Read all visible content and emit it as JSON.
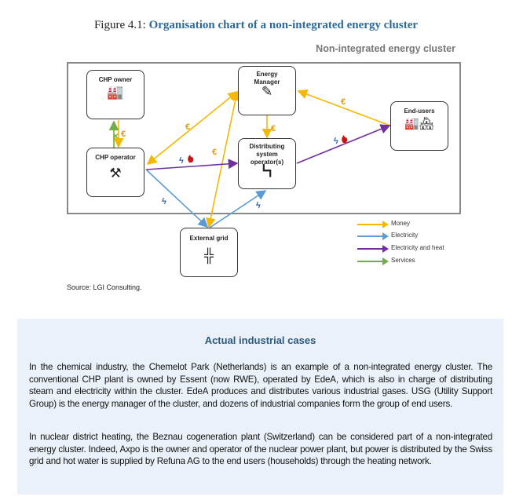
{
  "figure": {
    "label": "Figure 4.1:",
    "title": "Organisation chart of a non-integrated energy cluster"
  },
  "cluster_label": "Non-integrated energy cluster",
  "nodes": {
    "chp_owner": {
      "label": "CHP owner",
      "icon": "power-plant-icon"
    },
    "chp_operator": {
      "label": "CHP operator",
      "icon": "tools-icon"
    },
    "energy_manager": {
      "label": "Energy Manager",
      "icon": "tablet-pen-icon"
    },
    "dso": {
      "label": "Distributing system operator(s)",
      "icon": "pipes-icon"
    },
    "end_users": {
      "label": "End-users",
      "icon": "factory-houses-icon"
    },
    "external_grid": {
      "label": "External grid",
      "icon": "pylon-icon"
    }
  },
  "flow_labels": {
    "euro": "€",
    "bolt": "ϟ",
    "services": "✕",
    "heat": "🔥"
  },
  "legend": [
    {
      "label": "Money",
      "color": "#f5b800"
    },
    {
      "label": "Electricity",
      "color": "#5b9bd5"
    },
    {
      "label": "Electricity and heat",
      "color": "#7030a0"
    },
    {
      "label": "Services",
      "color": "#70ad47"
    }
  ],
  "source": "Source: LGI Consulting.",
  "cases": {
    "title": "Actual industrial cases",
    "paragraphs": [
      "In the chemical industry, the Chemelot Park (Netherlands) is an example of a non-integrated energy cluster. The conventional CHP plant is owned by Essent (now RWE), operated by EdeA, which is also in charge of distributing steam and electricity within the cluster. EdeA produces and distributes various industrial gases. USG (Utility Support Group) is the energy manager of the cluster, and dozens of industrial companies form the group of end users.",
      "In nuclear district heating, the Beznau cogeneration plant (Switzerland) can be considered part of a non-integrated energy cluster. Indeed, Axpo is the owner and operator of the nuclear power plant, but power is distributed by the Swiss grid and hot water is supplied by Refuna AG to the end users (households) through the heating network."
    ]
  }
}
